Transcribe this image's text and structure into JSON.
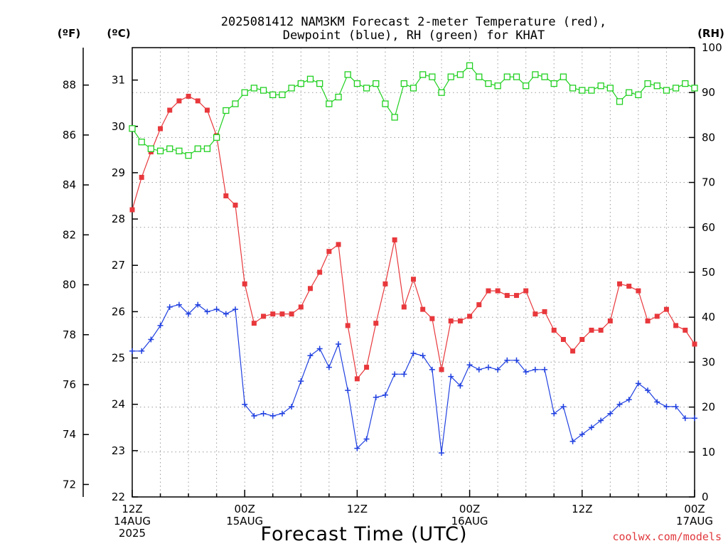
{
  "title_line1": "2025081412 NAM3KM Forecast 2-meter Temperature (red),",
  "title_line2": "Dewpoint (blue), RH (green) for KHAT",
  "unit_f": "(ºF)",
  "unit_c": "(ºC)",
  "unit_rh": "(RH)",
  "credit": "coolwx.com/models",
  "colors": {
    "temperature": "#e8383c",
    "dewpoint": "#2040e0",
    "rh": "#20d020",
    "credit": "#e0383c"
  },
  "chart_data": {
    "type": "line",
    "title": "2025081412 NAM3KM Forecast 2-meter Temperature (red), Dewpoint (blue), RH (green) for KHAT",
    "xlabel": "Forecast Time (UTC)",
    "x_unit": "hours from 2025-08-14 12Z",
    "x": [
      0,
      1,
      2,
      3,
      4,
      5,
      6,
      7,
      8,
      9,
      10,
      11,
      12,
      13,
      14,
      15,
      16,
      17,
      18,
      19,
      20,
      21,
      22,
      23,
      24,
      25,
      26,
      27,
      28,
      29,
      30,
      31,
      32,
      33,
      34,
      35,
      36,
      37,
      38,
      39,
      40,
      41,
      42,
      43,
      44,
      45,
      46,
      47,
      48,
      49,
      50,
      51,
      52,
      53,
      54,
      55,
      56,
      57,
      58,
      59,
      60
    ],
    "xlim": [
      0,
      60
    ],
    "x_ticks": [
      {
        "x": 0,
        "lines": [
          "12Z",
          "14AUG",
          "2025"
        ]
      },
      {
        "x": 12,
        "lines": [
          "00Z",
          "15AUG"
        ]
      },
      {
        "x": 24,
        "lines": [
          "12Z"
        ]
      },
      {
        "x": 36,
        "lines": [
          "00Z",
          "16AUG"
        ]
      },
      {
        "x": 48,
        "lines": [
          "12Z"
        ]
      },
      {
        "x": 60,
        "lines": [
          "00Z",
          "17AUG"
        ]
      }
    ],
    "y_left_outer": {
      "label": "(ºF)",
      "ylim": [
        71.5,
        89.5
      ],
      "ticks": [
        72,
        74,
        76,
        78,
        80,
        82,
        84,
        86,
        88
      ]
    },
    "y_left": {
      "label": "(ºC)",
      "ylim": [
        22,
        31.7
      ],
      "ticks": [
        22,
        23,
        24,
        25,
        26,
        27,
        28,
        29,
        30,
        31
      ]
    },
    "y_right": {
      "label": "(RH)",
      "ylim": [
        0,
        100
      ],
      "ticks": [
        0,
        10,
        20,
        30,
        40,
        50,
        60,
        70,
        80,
        90,
        100
      ]
    },
    "grid": true,
    "series": [
      {
        "name": "Temperature",
        "axis": "left",
        "marker": "filled-square",
        "color": "#e8383c",
        "values": [
          28.2,
          28.9,
          29.45,
          29.95,
          30.35,
          30.55,
          30.65,
          30.55,
          30.35,
          29.8,
          28.5,
          28.3,
          26.6,
          25.75,
          25.9,
          25.95,
          25.95,
          25.95,
          26.1,
          26.5,
          26.85,
          27.3,
          27.45,
          25.7,
          24.55,
          24.8,
          25.75,
          26.6,
          27.55,
          26.1,
          26.7,
          26.05,
          25.85,
          24.75,
          25.8,
          25.8,
          25.9,
          26.15,
          26.45,
          26.45,
          26.35,
          26.35,
          26.45,
          25.95,
          26.0,
          25.6,
          25.4,
          25.15,
          25.4,
          25.6,
          25.6,
          25.8,
          26.6,
          26.55,
          26.45,
          25.8,
          25.9,
          26.05,
          25.7,
          25.6,
          25.3
        ]
      },
      {
        "name": "Dewpoint",
        "axis": "left",
        "marker": "plus",
        "color": "#2040e0",
        "values": [
          25.15,
          25.15,
          25.4,
          25.7,
          26.1,
          26.15,
          25.95,
          26.15,
          26.0,
          26.05,
          25.95,
          26.05,
          24.0,
          23.75,
          23.8,
          23.75,
          23.8,
          23.95,
          24.5,
          25.05,
          25.2,
          24.8,
          25.3,
          24.3,
          23.05,
          23.25,
          24.15,
          24.2,
          24.65,
          24.65,
          25.1,
          25.05,
          24.75,
          22.95,
          24.6,
          24.4,
          24.85,
          24.75,
          24.8,
          24.75,
          24.95,
          24.95,
          24.7,
          24.75,
          24.75,
          23.8,
          23.95,
          23.2,
          23.35,
          23.5,
          23.65,
          23.8,
          24.0,
          24.1,
          24.45,
          24.3,
          24.05,
          23.95,
          23.95,
          23.7,
          23.7
        ]
      },
      {
        "name": "RH",
        "axis": "right",
        "marker": "open-square",
        "color": "#20d020",
        "values": [
          82,
          79,
          77.5,
          77,
          77.5,
          77,
          76,
          77.5,
          77.5,
          80,
          86,
          87.5,
          90,
          91,
          90.5,
          89.5,
          89.5,
          91,
          92,
          93,
          92,
          87.5,
          89,
          94,
          92,
          91,
          92,
          87.5,
          84.5,
          92,
          91,
          94,
          93.5,
          90,
          93.5,
          94,
          96,
          93.5,
          92,
          91.5,
          93.5,
          93.5,
          91.5,
          94,
          93.5,
          92,
          93.5,
          91,
          90.5,
          90.5,
          91.5,
          91,
          88,
          90,
          89.5,
          92,
          91.5,
          90.5,
          91,
          92,
          91
        ]
      }
    ]
  }
}
